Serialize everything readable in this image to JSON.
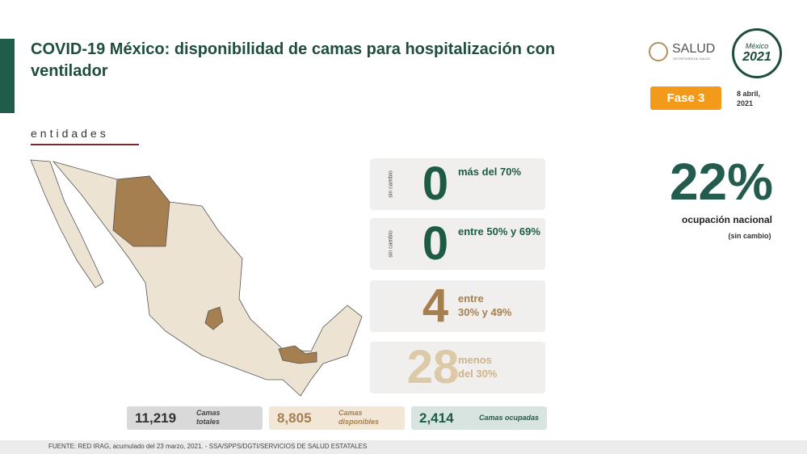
{
  "header": {
    "title": "COVID-19 México: disponibilidad de camas para hospitalización con ventilador",
    "section": "entidades"
  },
  "logos": {
    "salud": "SALUD",
    "salud_sub": "SECRETARÍA DE SALUD",
    "emblem_title": "México",
    "emblem_year": "2021"
  },
  "phase": "Fase 3",
  "date": [
    "8 abril,",
    "2021"
  ],
  "levels": [
    {
      "count": "0",
      "label": [
        "más del 70%"
      ],
      "note": "sin cambio"
    },
    {
      "count": "0",
      "label": [
        "entre 50% y 69%"
      ],
      "note": "sin cambio"
    },
    {
      "count": "4",
      "label": [
        "entre",
        "30% y 49%"
      ]
    },
    {
      "count": "28",
      "label": [
        "menos",
        "del 30%"
      ]
    }
  ],
  "national": {
    "value": "22%",
    "label": "ocupación nacional",
    "note": "(sin cambio)"
  },
  "totals": [
    {
      "value": "11,219",
      "label": [
        "Camas",
        "totales"
      ]
    },
    {
      "value": "8,805",
      "label": [
        "Camas",
        "disponibles"
      ]
    },
    {
      "value": "2,414",
      "label": [
        "Camas ocupadas"
      ]
    }
  ],
  "footer": "FUENTE: RED IRAG, acumulado del 23 marzo, 2021. -  SSA/SPPS/DGTI/SERVICIOS DE SALUD ESTATALES"
}
